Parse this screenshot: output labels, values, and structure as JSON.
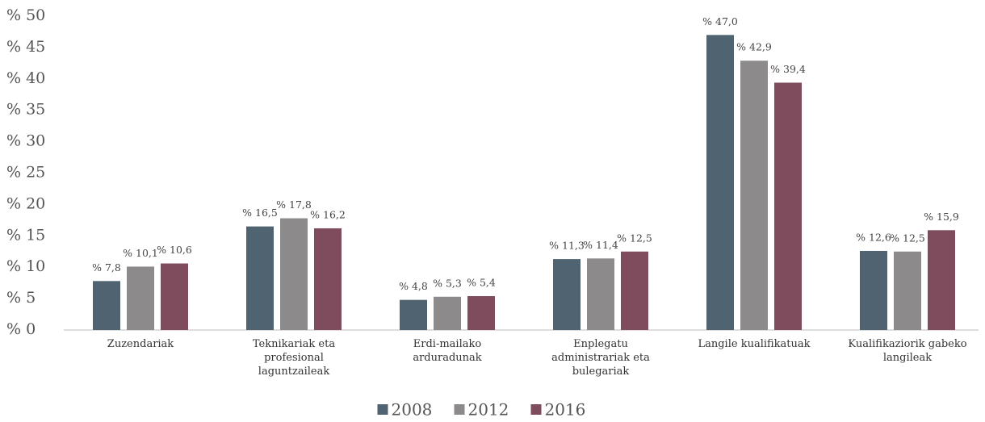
{
  "chart_data": {
    "type": "bar",
    "categories": [
      "Zuzendariak",
      "Teknikariak eta profesional laguntzaileak",
      "Erdi-mailako arduradunak",
      "Enplegatu administrariak eta bulegariak",
      "Langile kualifikatuak",
      "Kualifikaziorik gabeko langileak"
    ],
    "series": [
      {
        "name": "2008",
        "color": "#4f6470",
        "values": [
          7.8,
          16.5,
          4.8,
          11.3,
          47.0,
          12.6
        ],
        "value_labels": [
          "% 7,8",
          "% 16,5",
          "% 4,8",
          "% 11,3",
          "% 47,0",
          "% 12,6"
        ]
      },
      {
        "name": "2012",
        "color": "#8c8a8a",
        "values": [
          10.1,
          17.8,
          5.3,
          11.4,
          42.9,
          12.5
        ],
        "value_labels": [
          "% 10,1",
          "% 17,8",
          "% 5,3",
          "% 11,4",
          "% 42,9",
          "% 12,5"
        ]
      },
      {
        "name": "2016",
        "color": "#7e4c5c",
        "values": [
          10.6,
          16.2,
          5.4,
          12.5,
          39.4,
          15.9
        ],
        "value_labels": [
          "% 10,6",
          "% 16,2",
          "% 5,4",
          "% 12,5",
          "% 39,4",
          "% 15,9"
        ]
      }
    ],
    "ylim": [
      0,
      50
    ],
    "yticks": [
      {
        "value": 0,
        "label": "% 0"
      },
      {
        "value": 5,
        "label": "% 5"
      },
      {
        "value": 10,
        "label": "% 10"
      },
      {
        "value": 15,
        "label": "% 15"
      },
      {
        "value": 20,
        "label": "% 20"
      },
      {
        "value": 25,
        "label": "% 25"
      },
      {
        "value": 30,
        "label": "% 30"
      },
      {
        "value": 35,
        "label": "% 35"
      },
      {
        "value": 40,
        "label": "% 40"
      },
      {
        "value": 45,
        "label": "% 45"
      },
      {
        "value": 50,
        "label": "% 50"
      }
    ],
    "grid": false,
    "legend": "bottom"
  }
}
